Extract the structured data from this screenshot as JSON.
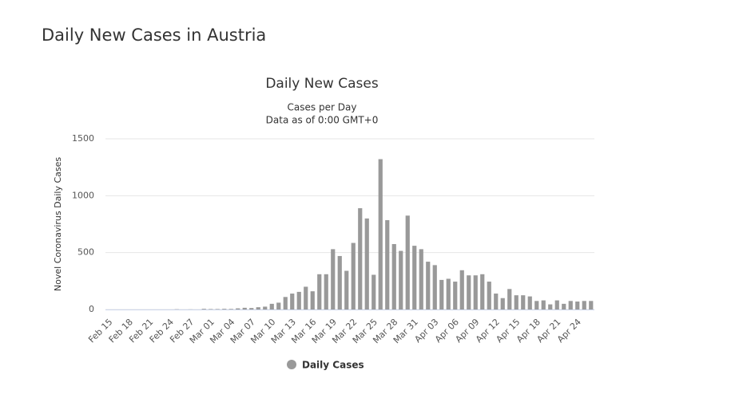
{
  "page_title": "Daily New Cases in Austria",
  "chart_data": {
    "type": "bar",
    "title": "Daily New Cases",
    "subtitle": [
      "Cases per Day",
      "Data as of 0:00 GMT+0"
    ],
    "y_label": "Novel Coronavirus Daily Cases",
    "categories": [
      "Feb 15",
      null,
      null,
      "Feb 18",
      null,
      null,
      "Feb 21",
      null,
      null,
      "Feb 24",
      null,
      null,
      "Feb 27",
      null,
      null,
      "Mar 01",
      null,
      null,
      "Mar 04",
      null,
      null,
      "Mar 07",
      null,
      null,
      "Mar 10",
      null,
      null,
      "Mar 13",
      null,
      null,
      "Mar 16",
      null,
      null,
      "Mar 19",
      null,
      null,
      "Mar 22",
      null,
      null,
      "Mar 25",
      null,
      null,
      "Mar 28",
      null,
      null,
      "Mar 31",
      null,
      null,
      "Apr 03",
      null,
      null,
      "Apr 06",
      null,
      null,
      "Apr 09",
      null,
      null,
      "Apr 12",
      null,
      null,
      "Apr 15",
      null,
      null,
      "Apr 18",
      null,
      null,
      "Apr 21",
      null,
      null,
      "Apr 24",
      null,
      null
    ],
    "series": [
      {
        "name": "Daily Cases",
        "color": "#999999",
        "values": [
          0,
          0,
          0,
          0,
          0,
          0,
          0,
          0,
          0,
          0,
          2,
          0,
          1,
          0,
          6,
          4,
          4,
          6,
          5,
          10,
          15,
          13,
          20,
          25,
          50,
          60,
          110,
          140,
          155,
          200,
          160,
          310,
          310,
          530,
          470,
          340,
          585,
          890,
          800,
          305,
          1321,
          785,
          575,
          515,
          825,
          560,
          530,
          420,
          390,
          260,
          270,
          245,
          345,
          300,
          300,
          310,
          245,
          140,
          100,
          180,
          125,
          125,
          115,
          75,
          80,
          45,
          80,
          50,
          75,
          70,
          75,
          75
        ]
      }
    ],
    "ylim": [
      0,
      1500
    ],
    "yticks": [
      0,
      500,
      1000,
      1500
    ],
    "grid": true,
    "legend": "bottom"
  }
}
